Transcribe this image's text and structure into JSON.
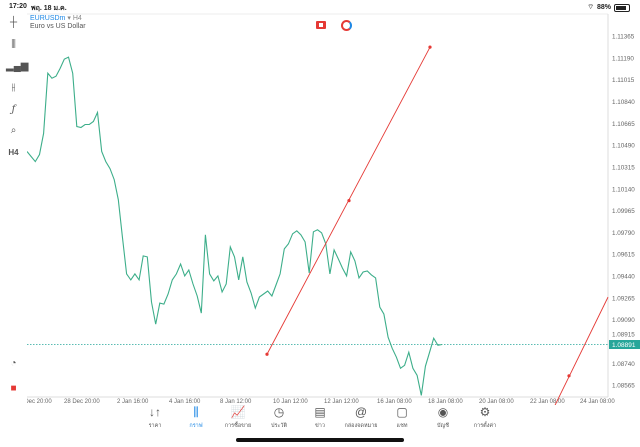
{
  "status_bar": {
    "time": "17:20",
    "date": "พฤ. 18 ม.ค.",
    "battery": "88%",
    "battery_level": 88
  },
  "symbol": {
    "name": "EURUSDm",
    "timeframe": "H4",
    "description": "Euro vs US Dollar"
  },
  "toolbar": {
    "timeframe_label": "H4",
    "icons": [
      "crosshair-icon",
      "candlestick-icon",
      "indicators-icon",
      "settings-sliders-icon",
      "function-icon",
      "objects-icon",
      "timeframe",
      "quick-trade-icon",
      "app-logo-icon"
    ]
  },
  "colors": {
    "price_line": "#3dae8a",
    "trendline": "#e53935",
    "accent": "#1e88e5",
    "current_price_bg": "#26a69a"
  },
  "chart_data": {
    "type": "line",
    "series": [
      {
        "values": [
          1.10439,
          1.10399,
          1.10358,
          1.10415,
          1.10584,
          1.11067,
          1.11027,
          1.11043,
          1.11107,
          1.1118,
          1.11196,
          1.11067,
          1.1064,
          1.10632,
          1.10656,
          1.10656,
          1.1068,
          1.10753,
          1.10439,
          1.10358,
          1.10302,
          1.10214,
          1.10053,
          1.09747,
          1.09457,
          1.09409,
          1.09457,
          1.09409,
          1.09602,
          1.09594,
          1.09231,
          1.09054,
          1.09223,
          1.09215,
          1.09296,
          1.09409,
          1.09457,
          1.09537,
          1.09441,
          1.09489,
          1.09376,
          1.0928,
          1.09143,
          1.09771,
          1.09457,
          1.09401,
          1.09441,
          1.09312,
          1.09376,
          1.09674,
          1.09594,
          1.09409,
          1.09594,
          1.09392,
          1.09304,
          1.09183,
          1.09272,
          1.09296,
          1.0932,
          1.0928,
          1.09368,
          1.09457,
          1.09658,
          1.09698,
          1.09779,
          1.09803,
          1.09771,
          1.09714,
          1.09465,
          1.09795,
          1.09811,
          1.09787,
          1.09698,
          1.09457,
          1.0965,
          1.09578,
          1.09505,
          1.09441,
          1.09634,
          1.09562,
          1.09425,
          1.09473,
          1.09481,
          1.09449,
          1.09425,
          1.09191,
          1.09135,
          1.0895,
          1.08861,
          1.08789,
          1.087,
          1.08724,
          1.08829,
          1.087,
          1.08644,
          1.08483,
          1.08716,
          1.08829,
          1.08942,
          1.08885,
          1.08891
        ]
      }
    ],
    "x_tick_labels": [
      "26 Dec 20:00",
      "28 Dec 20:00",
      "2 Jan 16:00",
      "4 Jan 16:00",
      "8 Jan 12:00",
      "10 Jan 12:00",
      "12 Jan 12:00",
      "16 Jan 08:00",
      "18 Jan 08:00",
      "20 Jan 08:00",
      "22 Jan 08:00",
      "24 Jan 08:00"
    ],
    "y_tick_labels": [
      "1.11365",
      "1.11190",
      "1.11015",
      "1.10840",
      "1.10665",
      "1.10490",
      "1.10315",
      "1.10140",
      "1.09965",
      "1.09790",
      "1.09615",
      "1.09440",
      "1.09265",
      "1.09090",
      "1.08915",
      "1.08740",
      "1.08565"
    ],
    "ylim": [
      1.0847,
      1.1155
    ],
    "current_price": "1.08891",
    "trendlines": [
      {
        "prices": [
          1.08813,
          1.10045,
          1.11276
        ]
      },
      {
        "prices": [
          1.08371,
          1.0864,
          1.09271
        ]
      }
    ],
    "grid": false
  },
  "nav": [
    {
      "label": "ราคา",
      "icon": "quotes-icon",
      "glyph": "↓↑"
    },
    {
      "label": "กราฟ",
      "icon": "chart-icon",
      "glyph": "⫼",
      "active": true
    },
    {
      "label": "การซื้อขาย",
      "icon": "trade-icon",
      "glyph": "📈"
    },
    {
      "label": "ประวัติ",
      "icon": "history-icon",
      "glyph": "◷"
    },
    {
      "label": "ข่าว",
      "icon": "news-icon",
      "glyph": "▤"
    },
    {
      "label": "กล่องจดหมาย",
      "icon": "mailbox-icon",
      "glyph": "@"
    },
    {
      "label": "แชท",
      "icon": "chat-icon",
      "glyph": "▢"
    },
    {
      "label": "บัญชี",
      "icon": "account-icon",
      "glyph": "◉"
    },
    {
      "label": "การตั้งค่า",
      "icon": "settings-icon",
      "glyph": "⚙"
    }
  ]
}
